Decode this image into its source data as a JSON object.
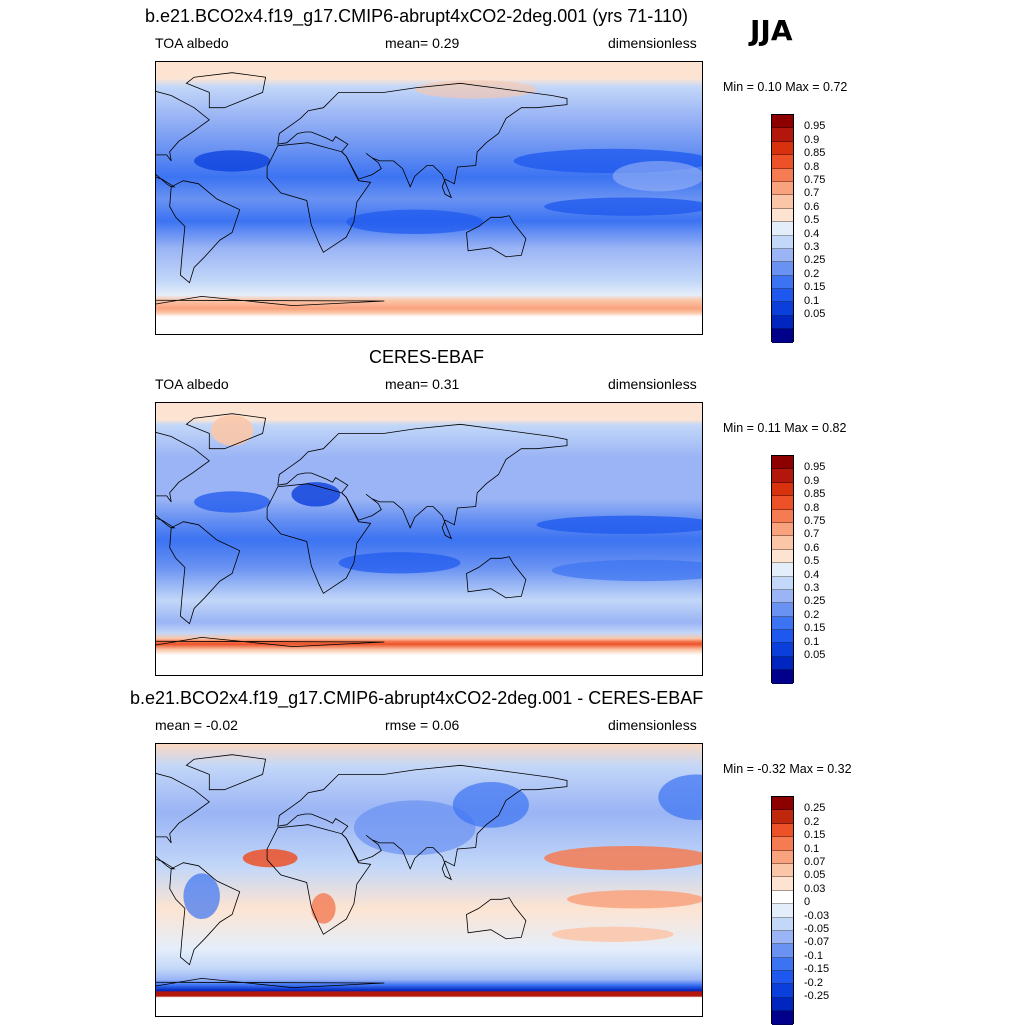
{
  "season": "JJA",
  "colors": {
    "abs_palette": [
      "#00008b",
      "#0026bf",
      "#0a3fdc",
      "#1e58ee",
      "#3c73f2",
      "#6992f2",
      "#9ab4f5",
      "#c3d7f8",
      "#e4eefb",
      "#fde4d2",
      "#fbc6a8",
      "#f9a27e",
      "#f47b52",
      "#ec5128",
      "#d8310d",
      "#b3160a",
      "#8c0000"
    ],
    "diff_palette": [
      "#00008b",
      "#0026bf",
      "#0a3fdc",
      "#1e58ee",
      "#3c73f2",
      "#6992f2",
      "#9ab4f5",
      "#c3d7f8",
      "#e4eefb",
      "#ffffff",
      "#fde4d2",
      "#fbc6a8",
      "#f9a27e",
      "#f47b52",
      "#ec5128",
      "#c0280d",
      "#8c0000"
    ]
  },
  "panels": [
    {
      "title": "b.e21.BCO2x4.f19_g17.CMIP6-abrupt4xCO2-2deg.001 (yrs 71-110)",
      "left_label": "TOA albedo",
      "center_label": "mean=   0.29",
      "right_label": "dimensionless",
      "minmax": "Min =   0.10 Max =   0.72",
      "colorbar_labels": [
        "0.95",
        "0.9",
        "0.85",
        "0.8",
        "0.75",
        "0.7",
        "0.6",
        "0.5",
        "0.4",
        "0.3",
        "0.25",
        "0.2",
        "0.15",
        "0.1",
        "0.05"
      ],
      "kind": "model"
    },
    {
      "title": "CERES-EBAF",
      "left_label": "TOA albedo",
      "center_label": "mean=   0.31",
      "right_label": "dimensionless",
      "minmax": "Min =   0.11 Max =   0.82",
      "colorbar_labels": [
        "0.95",
        "0.9",
        "0.85",
        "0.8",
        "0.75",
        "0.7",
        "0.6",
        "0.5",
        "0.4",
        "0.3",
        "0.25",
        "0.2",
        "0.15",
        "0.1",
        "0.05"
      ],
      "kind": "obs"
    },
    {
      "title": "b.e21.BCO2x4.f19_g17.CMIP6-abrupt4xCO2-2deg.001 - CERES-EBAF",
      "left_label": "mean =  -0.02",
      "center_label": "rmse =   0.06",
      "right_label": "dimensionless",
      "minmax": "Min =  -0.32 Max =   0.32",
      "colorbar_labels": [
        "0.25",
        "0.2",
        "0.15",
        "0.1",
        "0.07",
        "0.05",
        "0.03",
        "0",
        "-0.03",
        "-0.05",
        "-0.07",
        "-0.1",
        "-0.15",
        "-0.2",
        "-0.25"
      ],
      "kind": "diff"
    }
  ],
  "chart_data": [
    {
      "type": "heatmap",
      "title": "b.e21.BCO2x4.f19_g17.CMIP6-abrupt4xCO2-2deg.001 (yrs 71-110)",
      "variable": "TOA albedo",
      "units": "dimensionless",
      "mean": 0.29,
      "min": 0.1,
      "max": 0.72,
      "levels": [
        0.05,
        0.1,
        0.15,
        0.2,
        0.25,
        0.3,
        0.4,
        0.5,
        0.6,
        0.7,
        0.75,
        0.8,
        0.85,
        0.9,
        0.95
      ]
    },
    {
      "type": "heatmap",
      "title": "CERES-EBAF",
      "variable": "TOA albedo",
      "units": "dimensionless",
      "mean": 0.31,
      "min": 0.11,
      "max": 0.82,
      "levels": [
        0.05,
        0.1,
        0.15,
        0.2,
        0.25,
        0.3,
        0.4,
        0.5,
        0.6,
        0.7,
        0.75,
        0.8,
        0.85,
        0.9,
        0.95
      ]
    },
    {
      "type": "heatmap",
      "title": "b.e21.BCO2x4.f19_g17.CMIP6-abrupt4xCO2-2deg.001 - CERES-EBAF",
      "units": "dimensionless",
      "mean": -0.02,
      "rmse": 0.06,
      "min": -0.32,
      "max": 0.32,
      "levels": [
        -0.25,
        -0.2,
        -0.15,
        -0.1,
        -0.07,
        -0.05,
        -0.03,
        0,
        0.03,
        0.05,
        0.07,
        0.1,
        0.15,
        0.2,
        0.25
      ]
    }
  ]
}
